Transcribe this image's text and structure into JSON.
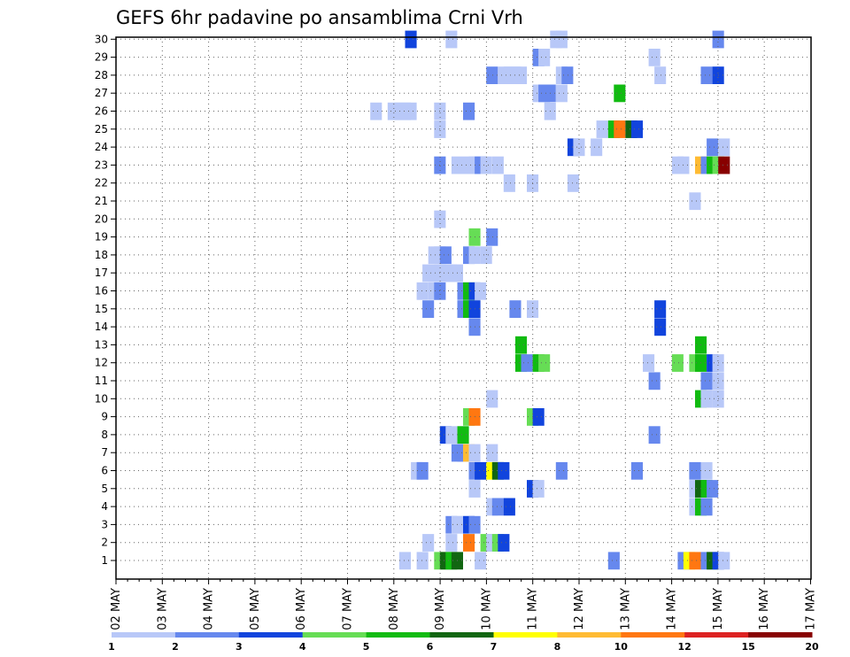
{
  "chart_data": {
    "type": "heatmap",
    "title": "GEFS 6hr padavine po ansamblima Crni Vrh",
    "y_ticks": [
      "1",
      "2",
      "3",
      "4",
      "5",
      "6",
      "7",
      "8",
      "9",
      "10",
      "11",
      "12",
      "13",
      "14",
      "15",
      "16",
      "17",
      "18",
      "19",
      "20",
      "21",
      "22",
      "23",
      "24",
      "25",
      "26",
      "27",
      "28",
      "29",
      "30"
    ],
    "x_ticks": [
      "02 MAY",
      "03 MAY",
      "04 MAY",
      "05 MAY",
      "06 MAY",
      "07 MAY",
      "08 MAY",
      "09 MAY",
      "10 MAY",
      "11 MAY",
      "12 MAY",
      "13 MAY",
      "14 MAY",
      "15 MAY",
      "16 MAY",
      "17 MAY"
    ],
    "grid": true,
    "colorbar": {
      "placement": "bottom",
      "boundaries": [
        "1",
        "2",
        "3",
        "4",
        "5",
        "6",
        "7",
        "8",
        "10",
        "12",
        "15",
        "20"
      ],
      "colors": [
        "#b8c8f8",
        "#6688ee",
        "#1144dd",
        "#66dd55",
        "#11bb11",
        "#116611",
        "#ffff00",
        "#ffbb33",
        "#ff7711",
        "#dd2222",
        "#880000"
      ]
    },
    "cells": [
      [
        1,
        69,
        1
      ],
      [
        1,
        72,
        1
      ],
      [
        1,
        75,
        4
      ],
      [
        1,
        76,
        6
      ],
      [
        1,
        77,
        5
      ],
      [
        1,
        78,
        6
      ],
      [
        1,
        82,
        1
      ],
      [
        1,
        105,
        2
      ],
      [
        1,
        117,
        2
      ],
      [
        1,
        118,
        7
      ],
      [
        1,
        119,
        9
      ],
      [
        1,
        121,
        2
      ],
      [
        1,
        122,
        6
      ],
      [
        1,
        123,
        3
      ],
      [
        1,
        124,
        1
      ],
      [
        2,
        73,
        1
      ],
      [
        2,
        77,
        1
      ],
      [
        2,
        80,
        9
      ],
      [
        2,
        83,
        4
      ],
      [
        2,
        84,
        1
      ],
      [
        2,
        85,
        4
      ],
      [
        2,
        86,
        3
      ],
      [
        3,
        77,
        2
      ],
      [
        3,
        78,
        1
      ],
      [
        3,
        79,
        1
      ],
      [
        3,
        80,
        3
      ],
      [
        3,
        81,
        2
      ],
      [
        4,
        84,
        1
      ],
      [
        4,
        85,
        2
      ],
      [
        4,
        87,
        3
      ],
      [
        4,
        119,
        1
      ],
      [
        4,
        120,
        5
      ],
      [
        4,
        121,
        2
      ],
      [
        5,
        81,
        1
      ],
      [
        5,
        91,
        3
      ],
      [
        5,
        92,
        1
      ],
      [
        5,
        119,
        1
      ],
      [
        5,
        120,
        6
      ],
      [
        5,
        121,
        5
      ],
      [
        5,
        122,
        2
      ],
      [
        6,
        71,
        1
      ],
      [
        6,
        72,
        2
      ],
      [
        6,
        81,
        2
      ],
      [
        6,
        82,
        3
      ],
      [
        6,
        84,
        7
      ],
      [
        6,
        85,
        6
      ],
      [
        6,
        86,
        3
      ],
      [
        6,
        96,
        2
      ],
      [
        6,
        109,
        2
      ],
      [
        6,
        119,
        2
      ],
      [
        6,
        121,
        1
      ],
      [
        7,
        78,
        2
      ],
      [
        7,
        79,
        2
      ],
      [
        7,
        80,
        8
      ],
      [
        7,
        81,
        1
      ],
      [
        7,
        84,
        1
      ],
      [
        8,
        76,
        3
      ],
      [
        8,
        77,
        1
      ],
      [
        8,
        79,
        5
      ],
      [
        8,
        112,
        2
      ],
      [
        9,
        80,
        4
      ],
      [
        9,
        81,
        9
      ],
      [
        9,
        91,
        4
      ],
      [
        9,
        92,
        3
      ],
      [
        10,
        84,
        1
      ],
      [
        10,
        120,
        5
      ],
      [
        10,
        121,
        1
      ],
      [
        10,
        123,
        1
      ],
      [
        11,
        112,
        2
      ],
      [
        11,
        121,
        2
      ],
      [
        11,
        123,
        1
      ],
      [
        12,
        89,
        5
      ],
      [
        12,
        90,
        2
      ],
      [
        12,
        92,
        5
      ],
      [
        12,
        93,
        4
      ],
      [
        12,
        111,
        1
      ],
      [
        12,
        116,
        4
      ],
      [
        12,
        119,
        4
      ],
      [
        12,
        120,
        5
      ],
      [
        12,
        122,
        3
      ],
      [
        12,
        123,
        1
      ],
      [
        13,
        89,
        5
      ],
      [
        13,
        120,
        5
      ],
      [
        14,
        81,
        2
      ],
      [
        14,
        113,
        3
      ],
      [
        15,
        73,
        2
      ],
      [
        15,
        79,
        2
      ],
      [
        15,
        80,
        5
      ],
      [
        15,
        81,
        3
      ],
      [
        15,
        88,
        2
      ],
      [
        15,
        91,
        1
      ],
      [
        15,
        113,
        3
      ],
      [
        16,
        72,
        1
      ],
      [
        16,
        74,
        1
      ],
      [
        16,
        75,
        2
      ],
      [
        16,
        79,
        2
      ],
      [
        16,
        80,
        5
      ],
      [
        16,
        81,
        3
      ],
      [
        16,
        82,
        1
      ],
      [
        17,
        73,
        1
      ],
      [
        17,
        74,
        1
      ],
      [
        17,
        75,
        1
      ],
      [
        17,
        76,
        1
      ],
      [
        17,
        77,
        1
      ],
      [
        17,
        78,
        1
      ],
      [
        18,
        74,
        1
      ],
      [
        18,
        75,
        1
      ],
      [
        18,
        76,
        2
      ],
      [
        18,
        80,
        2
      ],
      [
        18,
        81,
        1
      ],
      [
        18,
        83,
        1
      ],
      [
        19,
        81,
        4
      ],
      [
        19,
        84,
        2
      ],
      [
        20,
        75,
        1
      ],
      [
        21,
        119,
        1
      ],
      [
        22,
        87,
        1
      ],
      [
        22,
        91,
        1
      ],
      [
        22,
        98,
        1
      ],
      [
        23,
        75,
        2
      ],
      [
        23,
        78,
        1
      ],
      [
        23,
        80,
        1
      ],
      [
        23,
        81,
        1
      ],
      [
        23,
        82,
        2
      ],
      [
        23,
        83,
        1
      ],
      [
        23,
        85,
        1
      ],
      [
        23,
        116,
        1
      ],
      [
        23,
        117,
        1
      ],
      [
        23,
        120,
        8
      ],
      [
        23,
        121,
        2
      ],
      [
        23,
        122,
        5
      ],
      [
        23,
        123,
        4
      ],
      [
        23,
        124,
        11
      ],
      [
        24,
        98,
        3
      ],
      [
        24,
        99,
        1
      ],
      [
        24,
        102,
        1
      ],
      [
        24,
        122,
        2
      ],
      [
        24,
        124,
        1
      ],
      [
        25,
        75,
        1
      ],
      [
        25,
        103,
        1
      ],
      [
        25,
        105,
        5
      ],
      [
        25,
        106,
        9
      ],
      [
        25,
        108,
        6
      ],
      [
        25,
        109,
        3
      ],
      [
        26,
        64,
        1
      ],
      [
        26,
        67,
        1
      ],
      [
        26,
        68,
        1
      ],
      [
        26,
        69,
        1
      ],
      [
        26,
        70,
        1
      ],
      [
        26,
        75,
        1
      ],
      [
        26,
        80,
        2
      ],
      [
        26,
        94,
        1
      ],
      [
        27,
        92,
        1
      ],
      [
        27,
        93,
        2
      ],
      [
        27,
        94,
        2
      ],
      [
        27,
        96,
        1
      ],
      [
        27,
        106,
        5
      ],
      [
        28,
        84,
        2
      ],
      [
        28,
        86,
        1
      ],
      [
        28,
        87,
        1
      ],
      [
        28,
        88,
        1
      ],
      [
        28,
        89,
        1
      ],
      [
        28,
        96,
        1
      ],
      [
        28,
        97,
        2
      ],
      [
        28,
        113,
        1
      ],
      [
        28,
        121,
        2
      ],
      [
        28,
        123,
        3
      ],
      [
        29,
        92,
        2
      ],
      [
        29,
        93,
        1
      ],
      [
        29,
        112,
        1
      ],
      [
        30,
        70,
        3
      ],
      [
        30,
        77,
        1
      ],
      [
        30,
        95,
        1
      ],
      [
        30,
        96,
        1
      ],
      [
        30,
        123,
        2
      ]
    ]
  }
}
